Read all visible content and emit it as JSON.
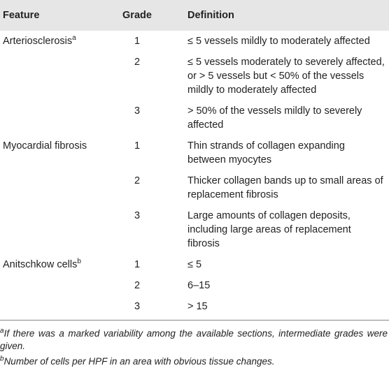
{
  "table": {
    "header": [
      "Feature",
      "Grade",
      "Definition"
    ],
    "groups": [
      {
        "feature": "Arteriosclerosis",
        "note": "a",
        "rows": [
          {
            "grade": 1,
            "definition": "≤ 5 vessels mildly to moderately affected"
          },
          {
            "grade": 2,
            "definition": "≤ 5 vessels moderately to severely affected, or > 5 vessels but < 50% of the vessels mildly to moderately affected"
          },
          {
            "grade": 3,
            "definition": "> 50% of the vessels mildly to severely affected"
          }
        ]
      },
      {
        "feature": "Myocardial fibrosis",
        "rows": [
          {
            "grade": 1,
            "definition": "Thin strands of collagen expanding between myocytes"
          },
          {
            "grade": 2,
            "definition": "Thicker collagen bands up to small areas of replacement fibrosis"
          },
          {
            "grade": 3,
            "definition": "Large amounts of collagen deposits, including large areas of replacement fibrosis"
          }
        ]
      },
      {
        "feature": "Anitschkow cells",
        "note": "b",
        "rows": [
          {
            "grade": 1,
            "definition": "≤ 5"
          },
          {
            "grade": 2,
            "definition": "6–15"
          },
          {
            "grade": 3,
            "definition": "> 15"
          }
        ]
      }
    ]
  },
  "footnotes": [
    {
      "mark": "a",
      "text": "If there was a marked variability among the available sections, intermediate grades were given."
    },
    {
      "mark": "b",
      "text": "Number of cells per HPF in an area with obvious tissue changes."
    }
  ]
}
